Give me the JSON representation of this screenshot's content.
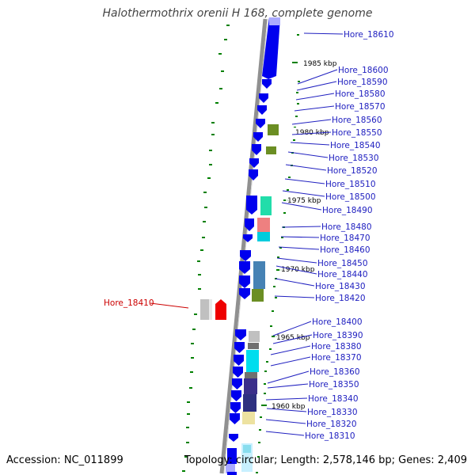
{
  "title": "Halothermothrix orenii H 168, complete genome",
  "footer": {
    "accession": "Accession: NC_011899",
    "topology": "Topology: circular; Length: 2,578,146 bp; Genes: 2,409"
  },
  "colors": {
    "forward_gene": "#0000ee",
    "label_blue": "#2020c0",
    "label_highlight": "#cc0000",
    "highlight_gene": "#ee0000",
    "tick": "#008000",
    "backbone": "#909090"
  },
  "scale_labels": [
    "1985 kbp",
    "1980 kbp",
    "1975 kbp",
    "1970 kbp",
    "1965 kbp",
    "1960 kbp"
  ],
  "highlighted_gene": "Hore_18410",
  "gene_labels": [
    "Hore_18610",
    "Hore_18600",
    "Hore_18590",
    "Hore_18580",
    "Hore_18570",
    "Hore_18560",
    "Hore_18550",
    "Hore_18540",
    "Hore_18530",
    "Hore_18520",
    "Hore_18510",
    "Hore_18500",
    "Hore_18490",
    "Hore_18480",
    "Hore_18470",
    "Hore_18460",
    "Hore_18450",
    "Hore_18440",
    "Hore_18430",
    "Hore_18420",
    "Hore_18400",
    "Hore_18390",
    "Hore_18380",
    "Hore_18370",
    "Hore_18360",
    "Hore_18350",
    "Hore_18340",
    "Hore_18330",
    "Hore_18320",
    "Hore_18310"
  ]
}
